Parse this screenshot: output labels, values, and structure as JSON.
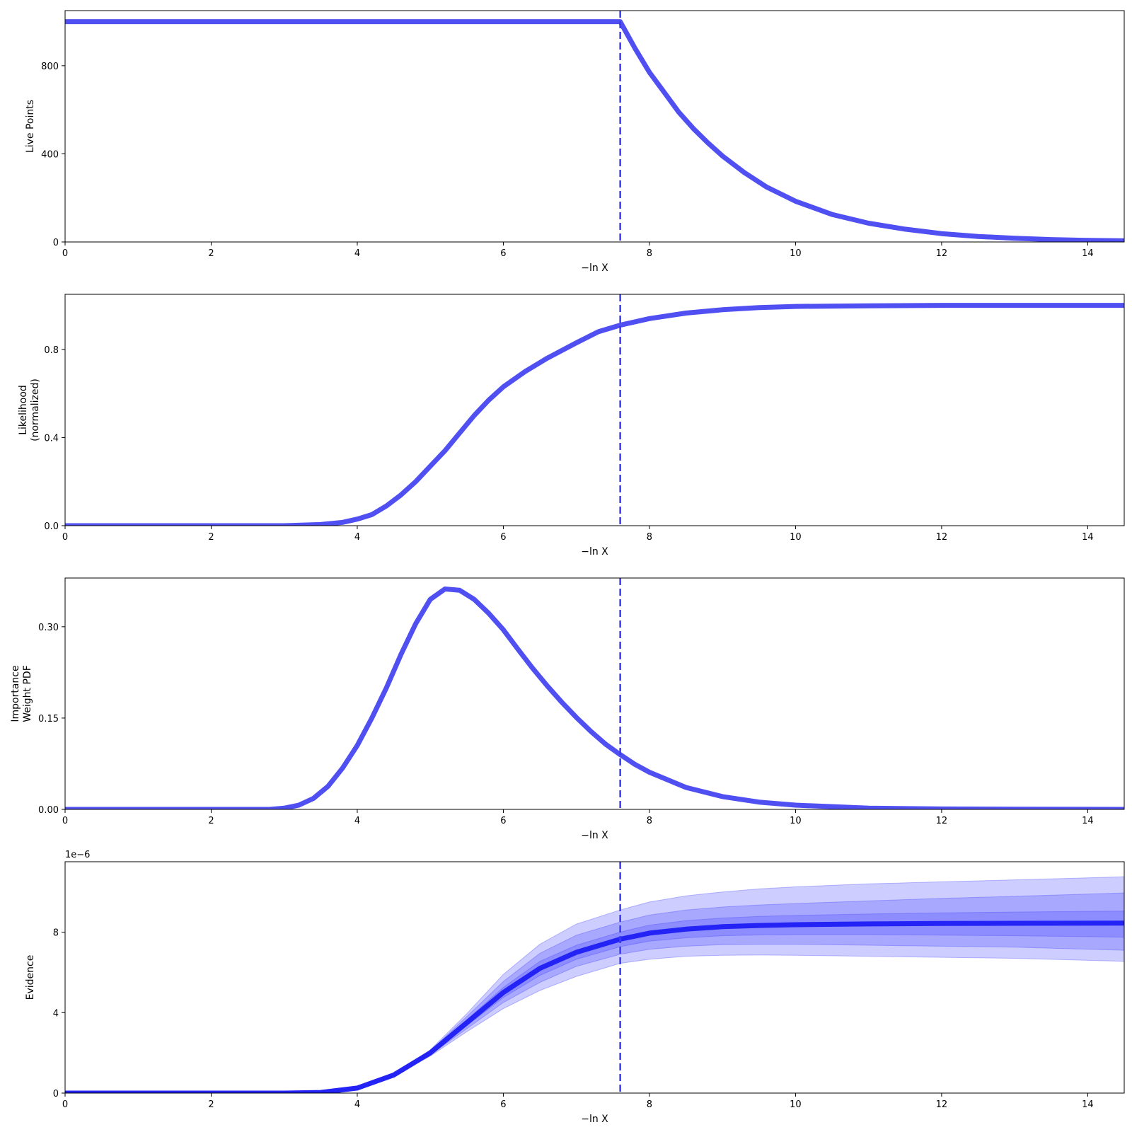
{
  "chart_data": [
    {
      "type": "line",
      "panel": "live-points",
      "ylabel_lines": [
        "Live Points"
      ],
      "xlabel": "−ln X",
      "xlim": [
        0,
        14.5
      ],
      "ylim": [
        0,
        1050
      ],
      "yticks": [
        0,
        400,
        800
      ],
      "ytick_labels": [
        "0",
        "400",
        "800"
      ],
      "xticks": [
        0,
        2,
        4,
        6,
        8,
        10,
        12,
        14
      ],
      "xtick_labels": [
        "0",
        "2",
        "4",
        "6",
        "8",
        "10",
        "12",
        "14"
      ],
      "vline_x": 7.6,
      "series": [
        {
          "x": [
            0,
            7.6,
            7.8,
            8.0,
            8.2,
            8.4,
            8.6,
            8.8,
            9.0,
            9.3,
            9.6,
            10.0,
            10.5,
            11.0,
            11.5,
            12.0,
            12.5,
            13.0,
            13.5,
            14.0,
            14.5
          ],
          "y": [
            1000,
            1000,
            880,
            770,
            680,
            590,
            515,
            450,
            390,
            315,
            250,
            185,
            125,
            85,
            58,
            38,
            25,
            17,
            11,
            7,
            5
          ]
        }
      ]
    },
    {
      "type": "line",
      "panel": "likelihood",
      "ylabel_lines": [
        "Likelihood",
        "(normalized)"
      ],
      "xlabel": "−ln X",
      "xlim": [
        0,
        14.5
      ],
      "ylim": [
        0,
        1.05
      ],
      "yticks": [
        0,
        0.4,
        0.8
      ],
      "ytick_labels": [
        "0.0",
        "0.4",
        "0.8"
      ],
      "xticks": [
        0,
        2,
        4,
        6,
        8,
        10,
        12,
        14
      ],
      "xtick_labels": [
        "0",
        "2",
        "4",
        "6",
        "8",
        "10",
        "12",
        "14"
      ],
      "vline_x": 7.6,
      "series": [
        {
          "x": [
            0,
            3.0,
            3.5,
            3.8,
            4.0,
            4.2,
            4.4,
            4.6,
            4.8,
            5.0,
            5.2,
            5.4,
            5.6,
            5.8,
            6.0,
            6.3,
            6.6,
            7.0,
            7.3,
            7.6,
            8.0,
            8.5,
            9.0,
            9.5,
            10.0,
            11.0,
            12.0,
            13.0,
            14.5
          ],
          "y": [
            0,
            0,
            0.005,
            0.015,
            0.03,
            0.05,
            0.09,
            0.14,
            0.2,
            0.27,
            0.34,
            0.42,
            0.5,
            0.57,
            0.63,
            0.7,
            0.76,
            0.83,
            0.88,
            0.91,
            0.94,
            0.965,
            0.98,
            0.99,
            0.995,
            0.998,
            1.0,
            1.0,
            1.0
          ]
        }
      ]
    },
    {
      "type": "line",
      "panel": "importance-weight",
      "ylabel_lines": [
        "Importance",
        "Weight PDF"
      ],
      "xlabel": "−ln X",
      "xlim": [
        0,
        14.5
      ],
      "ylim": [
        0,
        0.38
      ],
      "yticks": [
        0,
        0.15,
        0.3
      ],
      "ytick_labels": [
        "0.00",
        "0.15",
        "0.30"
      ],
      "xticks": [
        0,
        2,
        4,
        6,
        8,
        10,
        12,
        14
      ],
      "xtick_labels": [
        "0",
        "2",
        "4",
        "6",
        "8",
        "10",
        "12",
        "14"
      ],
      "vline_x": 7.6,
      "series": [
        {
          "x": [
            0,
            2.8,
            3.0,
            3.2,
            3.4,
            3.6,
            3.8,
            4.0,
            4.2,
            4.4,
            4.6,
            4.8,
            5.0,
            5.2,
            5.4,
            5.6,
            5.8,
            6.0,
            6.2,
            6.4,
            6.6,
            6.8,
            7.0,
            7.2,
            7.4,
            7.6,
            7.8,
            8.0,
            8.5,
            9.0,
            9.5,
            10.0,
            11.0,
            12.0,
            13.0,
            14.5
          ],
          "y": [
            0,
            0,
            0.002,
            0.007,
            0.018,
            0.038,
            0.068,
            0.105,
            0.15,
            0.2,
            0.255,
            0.305,
            0.345,
            0.362,
            0.36,
            0.345,
            0.322,
            0.295,
            0.263,
            0.232,
            0.203,
            0.176,
            0.151,
            0.128,
            0.107,
            0.09,
            0.074,
            0.061,
            0.036,
            0.021,
            0.012,
            0.007,
            0.002,
            0.0007,
            0.0002,
            0
          ]
        }
      ]
    },
    {
      "type": "area",
      "panel": "evidence",
      "ylabel_lines": [
        "Evidence"
      ],
      "xlabel": "−ln X",
      "offset_label": "1e−6",
      "xlim": [
        0,
        14.5
      ],
      "ylim": [
        0,
        11.5
      ],
      "yticks": [
        0,
        4,
        8
      ],
      "ytick_labels": [
        "0",
        "4",
        "8"
      ],
      "xticks": [
        0,
        2,
        4,
        6,
        8,
        10,
        12,
        14
      ],
      "xtick_labels": [
        "0",
        "2",
        "4",
        "6",
        "8",
        "10",
        "12",
        "14"
      ],
      "vline_x": 7.6,
      "x": [
        0,
        3.0,
        3.5,
        4.0,
        4.5,
        5.0,
        5.5,
        6.0,
        6.5,
        7.0,
        7.6,
        8.0,
        8.5,
        9.0,
        9.5,
        10.0,
        11.0,
        12.0,
        13.0,
        14.5
      ],
      "median": [
        0,
        0,
        0.03,
        0.25,
        0.9,
        2.0,
        3.5,
        5.0,
        6.2,
        7.0,
        7.65,
        7.95,
        8.15,
        8.27,
        8.33,
        8.37,
        8.41,
        8.43,
        8.44,
        8.45
      ],
      "bands": [
        {
          "lower": [
            0,
            0,
            0.03,
            0.24,
            0.86,
            1.84,
            3.05,
            4.2,
            5.1,
            5.8,
            6.45,
            6.65,
            6.8,
            6.85,
            6.86,
            6.85,
            6.8,
            6.75,
            6.7,
            6.55
          ],
          "upper": [
            0,
            0,
            0.03,
            0.26,
            0.95,
            2.15,
            3.95,
            5.9,
            7.4,
            8.4,
            9.1,
            9.5,
            9.8,
            10.0,
            10.15,
            10.25,
            10.4,
            10.5,
            10.6,
            10.75
          ]
        },
        {
          "lower": [
            0,
            0,
            0.03,
            0.245,
            0.88,
            1.9,
            3.2,
            4.5,
            5.5,
            6.3,
            6.9,
            7.15,
            7.3,
            7.38,
            7.4,
            7.4,
            7.35,
            7.3,
            7.25,
            7.1
          ],
          "upper": [
            0,
            0,
            0.03,
            0.255,
            0.93,
            2.1,
            3.8,
            5.55,
            6.95,
            7.85,
            8.5,
            8.85,
            9.1,
            9.25,
            9.35,
            9.42,
            9.55,
            9.68,
            9.78,
            9.95
          ]
        },
        {
          "lower": [
            0,
            0,
            0.03,
            0.248,
            0.89,
            1.96,
            3.35,
            4.75,
            5.85,
            6.65,
            7.28,
            7.55,
            7.72,
            7.82,
            7.86,
            7.88,
            7.88,
            7.85,
            7.82,
            7.75
          ],
          "upper": [
            0,
            0,
            0.03,
            0.252,
            0.91,
            2.05,
            3.65,
            5.25,
            6.55,
            7.35,
            8.0,
            8.35,
            8.57,
            8.7,
            8.78,
            8.83,
            8.9,
            8.96,
            9.0,
            9.05
          ]
        }
      ]
    }
  ]
}
